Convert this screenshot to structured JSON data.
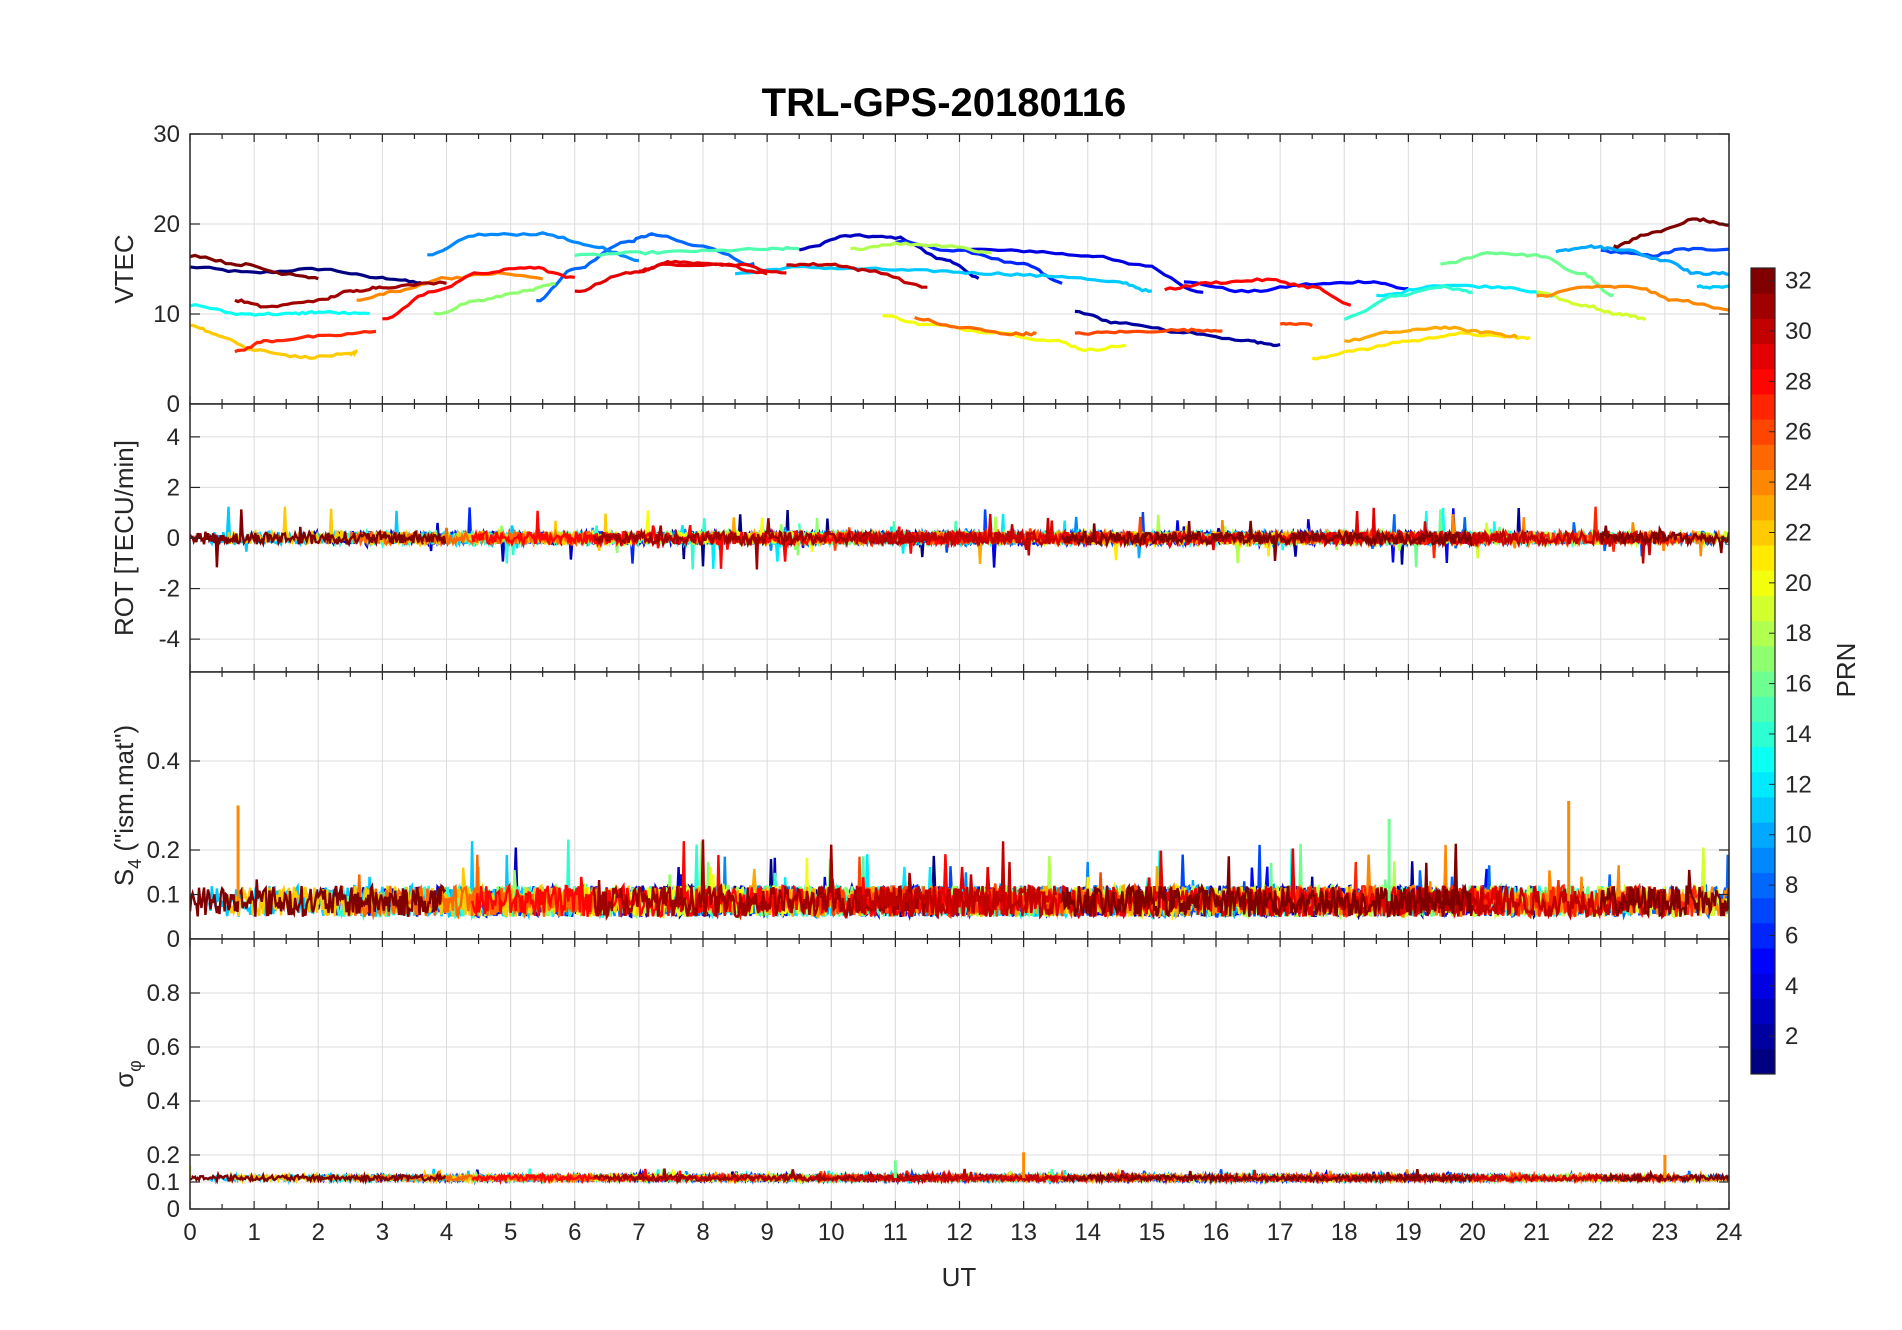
{
  "chart_data": {
    "type": "line",
    "title": "TRL-GPS-20180116",
    "xlabel": "UT",
    "xlim": [
      0,
      24
    ],
    "xticks": [
      "0",
      "1",
      "2",
      "3",
      "4",
      "5",
      "6",
      "7",
      "8",
      "9",
      "10",
      "11",
      "12",
      "13",
      "14",
      "15",
      "16",
      "17",
      "18",
      "19",
      "20",
      "21",
      "22",
      "23",
      "24"
    ],
    "colorbar": {
      "label": "PRN",
      "range": [
        1,
        32
      ],
      "ticks": [
        "2",
        "4",
        "6",
        "8",
        "10",
        "12",
        "14",
        "16",
        "18",
        "20",
        "22",
        "24",
        "26",
        "28",
        "30",
        "32"
      ],
      "colormap": "jet"
    },
    "panels": [
      {
        "name": "vtec",
        "ylabel": "VTEC",
        "ylim": [
          0,
          30
        ],
        "yticks": [
          "0",
          "10",
          "20",
          "30"
        ],
        "yvals": [
          0,
          10,
          20,
          30
        ],
        "series": [
          {
            "prn": 1,
            "points": [
              [
                0,
                15.2
              ],
              [
                1,
                14.6
              ],
              [
                2,
                15.0
              ],
              [
                3,
                14.0
              ],
              [
                3.6,
                13.5
              ]
            ]
          },
          {
            "prn": 2,
            "points": [
              [
                13.8,
                10.2
              ],
              [
                14.5,
                9.0
              ],
              [
                15.5,
                8.0
              ],
              [
                16.5,
                7.0
              ],
              [
                17.0,
                6.5
              ]
            ]
          },
          {
            "prn": 3,
            "points": [
              [
                9.5,
                17.2
              ],
              [
                10.3,
                18.7
              ],
              [
                11.0,
                18.5
              ],
              [
                11.8,
                16.0
              ],
              [
                12.3,
                14.0
              ]
            ]
          },
          {
            "prn": 4,
            "points": [
              [
                12.0,
                17.2
              ],
              [
                13.0,
                17.0
              ],
              [
                14.0,
                16.5
              ],
              [
                14.8,
                15.5
              ],
              [
                15.8,
                12.5
              ]
            ]
          },
          {
            "prn": 5,
            "points": [
              [
                15.5,
                13.5
              ],
              [
                16.5,
                12.5
              ],
              [
                17.5,
                13.3
              ],
              [
                18.4,
                13.6
              ],
              [
                19.0,
                12.8
              ]
            ]
          },
          {
            "prn": 6,
            "points": [
              [
                11.0,
                18.0
              ],
              [
                12.0,
                17.0
              ],
              [
                13.0,
                15.5
              ],
              [
                13.6,
                13.5
              ]
            ]
          },
          {
            "prn": 7,
            "points": [
              [
                22.0,
                17.0
              ],
              [
                22.8,
                16.5
              ],
              [
                23.3,
                17.2
              ],
              [
                24,
                17.2
              ]
            ]
          },
          {
            "prn": 8,
            "points": [
              [
                5.4,
                11.5
              ],
              [
                6.0,
                15.0
              ],
              [
                6.8,
                18.0
              ],
              [
                7.2,
                18.8
              ],
              [
                8.0,
                17.5
              ],
              [
                8.8,
                15.5
              ]
            ]
          },
          {
            "prn": 9,
            "points": [
              [
                3.7,
                16.5
              ],
              [
                4.5,
                18.8
              ],
              [
                5.5,
                18.9
              ],
              [
                6.3,
                17.5
              ],
              [
                7.0,
                16.0
              ]
            ]
          },
          {
            "prn": 10,
            "points": [
              [
                21.3,
                17.0
              ],
              [
                21.8,
                17.5
              ],
              [
                22.3,
                17.2
              ],
              [
                23.0,
                16.0
              ],
              [
                23.5,
                14.5
              ],
              [
                24,
                14.5
              ]
            ]
          },
          {
            "prn": 11,
            "points": [
              [
                8.5,
                14.5
              ],
              [
                9.5,
                15.2
              ],
              [
                10.5,
                15.0
              ],
              [
                11.5,
                14.8
              ],
              [
                12.5,
                14.5
              ],
              [
                13.5,
                14.2
              ],
              [
                14.5,
                13.5
              ],
              [
                15.0,
                12.5
              ]
            ]
          },
          {
            "prn": 12,
            "points": [
              [
                18.5,
                12.0
              ],
              [
                19.5,
                13.2
              ],
              [
                20.5,
                13.0
              ],
              [
                21.3,
                12.0
              ]
            ]
          },
          {
            "prn": 13,
            "points": [
              [
                0,
                11.0
              ],
              [
                0.8,
                10.0
              ],
              [
                1.5,
                10.0
              ],
              [
                2.0,
                10.2
              ],
              [
                2.8,
                10.0
              ]
            ]
          },
          {
            "prn": 14,
            "points": [
              [
                18.0,
                9.5
              ],
              [
                18.8,
                12.0
              ],
              [
                19.5,
                13.0
              ],
              [
                20.0,
                12.5
              ]
            ]
          },
          {
            "prn": 15,
            "points": [
              [
                6.0,
                16.5
              ],
              [
                7.0,
                16.8
              ],
              [
                8.0,
                17.0
              ],
              [
                9.0,
                17.2
              ],
              [
                9.5,
                17.3
              ]
            ]
          },
          {
            "prn": 16,
            "points": [
              [
                19.5,
                15.5
              ],
              [
                20.3,
                16.8
              ],
              [
                21.0,
                16.5
              ],
              [
                21.7,
                14.5
              ],
              [
                22.2,
                12.0
              ]
            ]
          },
          {
            "prn": 17,
            "points": [
              [
                3.8,
                10.0
              ],
              [
                4.5,
                11.5
              ],
              [
                5.2,
                12.5
              ],
              [
                5.7,
                13.3
              ]
            ]
          },
          {
            "prn": 18,
            "points": [
              [
                10.3,
                17.2
              ],
              [
                11.0,
                17.8
              ],
              [
                11.8,
                17.6
              ],
              [
                12.5,
                16.8
              ]
            ]
          },
          {
            "prn": 19,
            "points": [
              [
                21.0,
                12.5
              ],
              [
                21.7,
                11.0
              ],
              [
                22.3,
                10.0
              ],
              [
                22.7,
                9.5
              ]
            ]
          },
          {
            "prn": 20,
            "points": [
              [
                10.8,
                9.8
              ],
              [
                11.5,
                8.8
              ],
              [
                12.5,
                8.0
              ],
              [
                13.5,
                7.0
              ],
              [
                14.0,
                6.0
              ],
              [
                14.6,
                6.5
              ]
            ]
          },
          {
            "prn": 21,
            "points": [
              [
                17.5,
                5.0
              ],
              [
                18.2,
                6.0
              ],
              [
                19.0,
                7.0
              ],
              [
                19.8,
                7.8
              ],
              [
                20.5,
                7.5
              ],
              [
                20.9,
                7.3
              ]
            ]
          },
          {
            "prn": 22,
            "points": [
              [
                0,
                8.8
              ],
              [
                0.5,
                7.5
              ],
              [
                1.0,
                6.0
              ],
              [
                1.8,
                5.2
              ],
              [
                2.5,
                5.5
              ],
              [
                2.6,
                5.8
              ]
            ]
          },
          {
            "prn": 23,
            "points": [
              [
                18.0,
                7.0
              ],
              [
                18.8,
                8.0
              ],
              [
                19.5,
                8.5
              ],
              [
                20.2,
                8.0
              ],
              [
                20.7,
                7.5
              ]
            ]
          },
          {
            "prn": 24,
            "points": [
              [
                2.6,
                11.5
              ],
              [
                3.2,
                12.5
              ],
              [
                4.0,
                14.0
              ],
              [
                4.8,
                14.5
              ],
              [
                5.5,
                14.0
              ]
            ]
          },
          {
            "prn": 25,
            "points": [
              [
                11.3,
                9.5
              ],
              [
                12.0,
                8.5
              ],
              [
                12.8,
                7.8
              ],
              [
                13.2,
                7.8
              ]
            ]
          },
          {
            "prn": 26,
            "points": [
              [
                13.8,
                7.8
              ],
              [
                14.5,
                8.0
              ],
              [
                15.5,
                8.2
              ],
              [
                16.1,
                8.2
              ]
            ]
          },
          {
            "prn": 27,
            "points": [
              [
                0.7,
                5.8
              ],
              [
                1.2,
                7.0
              ],
              [
                2.0,
                7.5
              ],
              [
                2.9,
                8.0
              ]
            ]
          },
          {
            "prn": 28,
            "points": [
              [
                3.0,
                9.5
              ],
              [
                3.8,
                12.5
              ],
              [
                4.5,
                14.5
              ],
              [
                5.3,
                15.2
              ],
              [
                6.0,
                14.0
              ]
            ]
          },
          {
            "prn": 29,
            "points": [
              [
                6.0,
                12.5
              ],
              [
                6.8,
                14.5
              ],
              [
                7.5,
                15.5
              ],
              [
                8.5,
                15.5
              ],
              [
                9.3,
                14.5
              ]
            ]
          },
          {
            "prn": 30,
            "points": [
              [
                9.3,
                15.5
              ],
              [
                10.0,
                15.5
              ],
              [
                10.6,
                14.8
              ],
              [
                11.5,
                13.0
              ]
            ]
          },
          {
            "prn": 31,
            "points": [
              [
                0.7,
                11.5
              ],
              [
                1.2,
                10.8
              ],
              [
                2.0,
                11.5
              ],
              [
                2.5,
                12.5
              ],
              [
                3.0,
                13.0
              ],
              [
                4.0,
                13.5
              ]
            ]
          },
          {
            "prn": 32,
            "points": [
              [
                0,
                16.5
              ],
              [
                0.8,
                15.5
              ],
              [
                1.5,
                14.5
              ],
              [
                2.0,
                14.0
              ]
            ]
          },
          {
            "prn": 32,
            "points": [
              [
                22.2,
                17.5
              ],
              [
                22.8,
                19.0
              ],
              [
                23.5,
                20.5
              ],
              [
                24,
                19.8
              ]
            ]
          },
          {
            "prn": 29,
            "points": [
              [
                7.0,
                14.8
              ],
              [
                7.5,
                15.8
              ],
              [
                8.2,
                15.6
              ],
              [
                9.0,
                14.5
              ]
            ]
          },
          {
            "prn": 28,
            "points": [
              [
                15.2,
                12.8
              ],
              [
                16.0,
                13.5
              ],
              [
                16.8,
                13.8
              ],
              [
                17.5,
                13.0
              ],
              [
                18.1,
                11.0
              ]
            ]
          },
          {
            "prn": 24,
            "points": [
              [
                21.0,
                12.0
              ],
              [
                21.8,
                13.0
              ],
              [
                22.5,
                13.0
              ],
              [
                23.2,
                11.5
              ],
              [
                24,
                10.5
              ]
            ]
          },
          {
            "prn": 26,
            "points": [
              [
                17.0,
                9.0
              ],
              [
                17.5,
                8.8
              ]
            ]
          },
          {
            "prn": 11,
            "points": [
              [
                23.5,
                13.0
              ],
              [
                24,
                13.0
              ]
            ]
          }
        ]
      },
      {
        "name": "rot",
        "ylabel": "ROT [TECU/min]",
        "ylim": [
          -5.3,
          5.3
        ],
        "yticks": [
          "-4",
          "-2",
          "0",
          "2",
          "4"
        ],
        "yvals": [
          -4,
          -2,
          0,
          2,
          4
        ],
        "noise": {
          "baseline": 0.0,
          "amplitude": 0.25,
          "spike": 0.9
        }
      },
      {
        "name": "s4",
        "ylabel": "S4 (\"ism.mat\")",
        "ylabel_main": "S",
        "ylabel_sub": "4",
        "ylabel_rest": " (\"ism.mat\")",
        "ylim": [
          0,
          0.6
        ],
        "yticks": [
          "0",
          "0.1",
          "0.2",
          "0.4"
        ],
        "yvals": [
          0,
          0.1,
          0.2,
          0.4
        ],
        "noise": {
          "baseline": 0.085,
          "amplitude": 0.035,
          "spike": 0.2
        },
        "spikes": [
          [
            0.75,
            0.3
          ],
          [
            21.5,
            0.31
          ],
          [
            18.7,
            0.27
          ]
        ]
      },
      {
        "name": "sigma_phi",
        "ylabel": "σφ",
        "ylabel_main": "σ",
        "ylabel_sub": "φ",
        "ylim": [
          0,
          1
        ],
        "yticks": [
          "0",
          "0.1",
          "0.2",
          "0.4",
          "0.6",
          "0.8"
        ],
        "yvals": [
          0,
          0.1,
          0.2,
          0.4,
          0.6,
          0.8
        ],
        "noise": {
          "baseline": 0.115,
          "amplitude": 0.01,
          "spike": 0.05
        },
        "spikes": [
          [
            13.0,
            0.21
          ],
          [
            23.0,
            0.2
          ],
          [
            11.0,
            0.18
          ],
          [
            0.0,
            0.16
          ]
        ]
      }
    ]
  }
}
